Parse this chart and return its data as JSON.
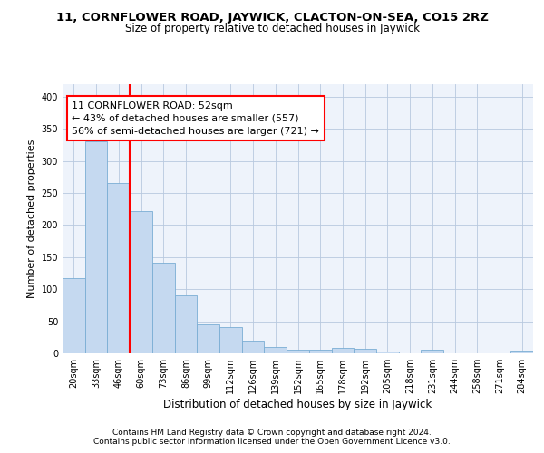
{
  "title_line1": "11, CORNFLOWER ROAD, JAYWICK, CLACTON-ON-SEA, CO15 2RZ",
  "title_line2": "Size of property relative to detached houses in Jaywick",
  "xlabel": "Distribution of detached houses by size in Jaywick",
  "ylabel": "Number of detached properties",
  "categories": [
    "20sqm",
    "33sqm",
    "46sqm",
    "60sqm",
    "73sqm",
    "86sqm",
    "99sqm",
    "112sqm",
    "126sqm",
    "139sqm",
    "152sqm",
    "165sqm",
    "178sqm",
    "192sqm",
    "205sqm",
    "218sqm",
    "231sqm",
    "244sqm",
    "258sqm",
    "271sqm",
    "284sqm"
  ],
  "values": [
    117,
    330,
    265,
    222,
    141,
    90,
    45,
    41,
    20,
    10,
    6,
    5,
    8,
    7,
    3,
    0,
    5,
    0,
    0,
    0,
    4
  ],
  "bar_color": "#c5d9f0",
  "bar_edge_color": "#7aadd4",
  "annotation_line1": "11 CORNFLOWER ROAD: 52sqm",
  "annotation_line2": "← 43% of detached houses are smaller (557)",
  "annotation_line3": "56% of semi-detached houses are larger (721) →",
  "footer_line1": "Contains HM Land Registry data © Crown copyright and database right 2024.",
  "footer_line2": "Contains public sector information licensed under the Open Government Licence v3.0.",
  "ylim": [
    0,
    420
  ],
  "yticks": [
    0,
    50,
    100,
    150,
    200,
    250,
    300,
    350,
    400
  ],
  "bg_color": "#eef3fb",
  "grid_color": "#b8c8df",
  "title1_fontsize": 9.5,
  "title2_fontsize": 8.5,
  "tick_fontsize": 7,
  "ylabel_fontsize": 8,
  "xlabel_fontsize": 8.5,
  "annot_fontsize": 8,
  "footer_fontsize": 6.5,
  "red_line_index": 2.5
}
